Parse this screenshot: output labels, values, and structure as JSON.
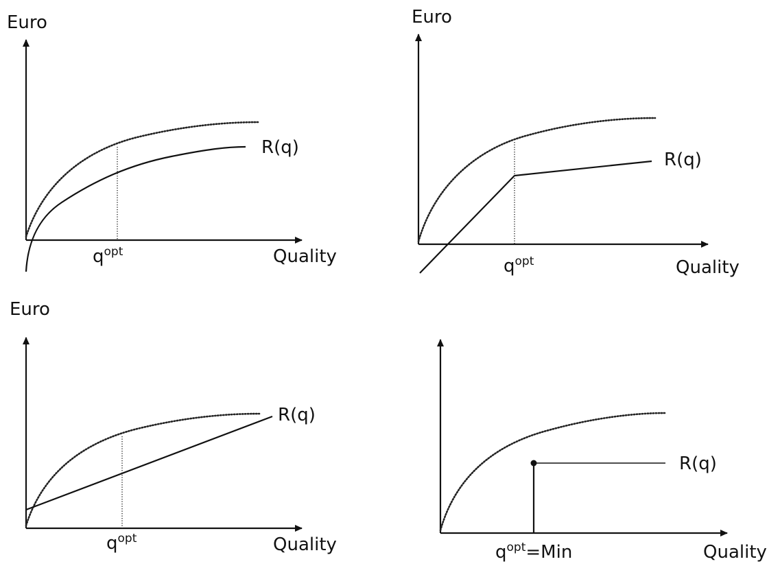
{
  "panels": [
    {
      "id": "top-left",
      "y_axis_label": "Euro",
      "x_axis_label": "Quality",
      "curve_label": "R(q)",
      "optimum_label": {
        "base": "q",
        "sup": "opt",
        "suffix": ""
      }
    },
    {
      "id": "top-right",
      "y_axis_label": "Euro",
      "x_axis_label": "Quality",
      "curve_label": "R(q)",
      "optimum_label": {
        "base": "q",
        "sup": "opt",
        "suffix": ""
      }
    },
    {
      "id": "bottom-left",
      "y_axis_label": "Euro",
      "x_axis_label": "Quality",
      "curve_label": "R(q)",
      "optimum_label": {
        "base": "q",
        "sup": "opt",
        "suffix": ""
      }
    },
    {
      "id": "bottom-right",
      "y_axis_label": "",
      "x_axis_label": "Quality",
      "curve_label": "R(q)",
      "optimum_label": {
        "base": "q",
        "sup": "opt",
        "suffix": "=Min"
      }
    }
  ]
}
